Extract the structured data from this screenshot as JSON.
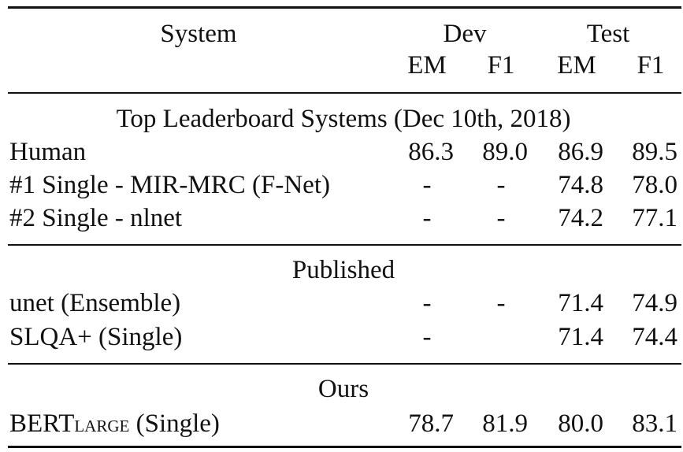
{
  "header": {
    "system": "System",
    "dev": "Dev",
    "test": "Test",
    "dev_em": "EM",
    "dev_f1": "F1",
    "test_em": "EM",
    "test_f1": "F1"
  },
  "sections": [
    {
      "title": "Top Leaderboard Systems (Dec 10th, 2018)",
      "rows": [
        {
          "system": "Human",
          "dev_em": "86.3",
          "dev_f1": "89.0",
          "test_em": "86.9",
          "test_f1": "89.5"
        },
        {
          "system": "#1 Single - MIR-MRC (F-Net)",
          "dev_em": "-",
          "dev_f1": "-",
          "test_em": "74.8",
          "test_f1": "78.0"
        },
        {
          "system": "#2 Single - nlnet",
          "dev_em": "-",
          "dev_f1": "-",
          "test_em": "74.2",
          "test_f1": "77.1"
        }
      ]
    },
    {
      "title": "Published",
      "rows": [
        {
          "system": "unet (Ensemble)",
          "dev_em": "-",
          "dev_f1": "-",
          "test_em": "71.4",
          "test_f1": "74.9"
        },
        {
          "system": "SLQA+ (Single)",
          "dev_em": "-",
          "dev_f1": "",
          "test_em": "71.4",
          "test_f1": "74.4"
        }
      ]
    },
    {
      "title": "Ours",
      "rows": [
        {
          "system_main": "BERT",
          "system_sub": "LARGE",
          "system_rest": " (Single)",
          "dev_em": "78.7",
          "dev_f1": "81.9",
          "test_em": "80.0",
          "test_f1": "83.1"
        }
      ]
    }
  ]
}
